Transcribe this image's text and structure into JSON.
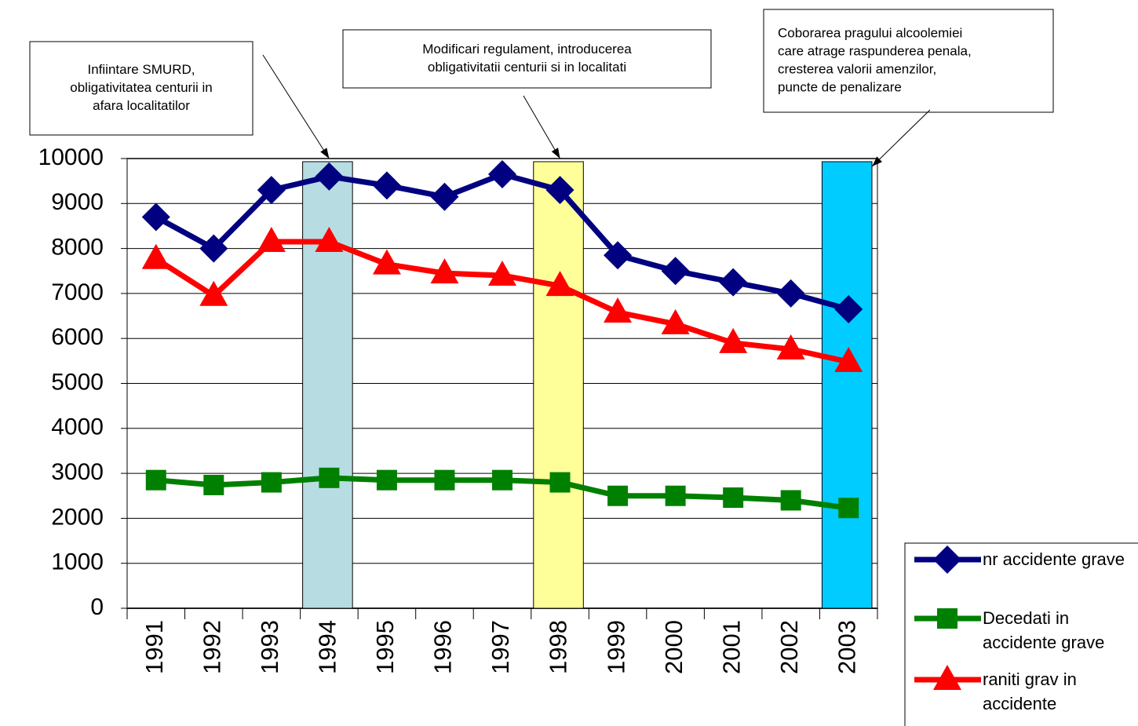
{
  "chart_data": {
    "type": "line",
    "categories": [
      "1991",
      "1992",
      "1993",
      "1994",
      "1995",
      "1996",
      "1997",
      "1998",
      "1999",
      "2000",
      "2001",
      "2002",
      "2003"
    ],
    "series": [
      {
        "name": "nr accidente grave",
        "color": "#000080",
        "marker": "diamond",
        "values": [
          8700,
          8000,
          9300,
          9600,
          9400,
          9150,
          9650,
          9300,
          7850,
          7500,
          7250,
          7000,
          6650
        ]
      },
      {
        "name": "Decedati in accidente grave",
        "color": "#008000",
        "marker": "square",
        "values": [
          2850,
          2740,
          2800,
          2900,
          2850,
          2850,
          2850,
          2800,
          2500,
          2500,
          2460,
          2400,
          2230
        ]
      },
      {
        "name": "raniti grav in accidente",
        "color": "#ff0000",
        "marker": "triangle",
        "values": [
          7770,
          6950,
          8150,
          8150,
          7650,
          7450,
          7400,
          7170,
          6580,
          6320,
          5900,
          5760,
          5480
        ]
      }
    ],
    "ylim": [
      0,
      10000
    ],
    "yticks": [
      0,
      1000,
      2000,
      3000,
      4000,
      5000,
      6000,
      7000,
      8000,
      9000,
      10000
    ],
    "grid": true,
    "legend": "bottom-right",
    "annotations": [
      {
        "x": "1994",
        "color": "#b7dde3",
        "text": [
          "Infiintare SMURD,",
          "obligativitatea centurii in",
          "afara localitatilor"
        ]
      },
      {
        "x": "1998",
        "color": "#ffff99",
        "text": [
          "Modificari regulament, introducerea",
          "obligativitatii centurii si in localitati"
        ]
      },
      {
        "x": "2003",
        "color": "#00ccff",
        "text": [
          "Coborarea pragului alcoolemiei",
          "care atrage raspunderea penala,",
          "cresterea valorii amenzilor,",
          "puncte de penalizare"
        ]
      }
    ]
  }
}
